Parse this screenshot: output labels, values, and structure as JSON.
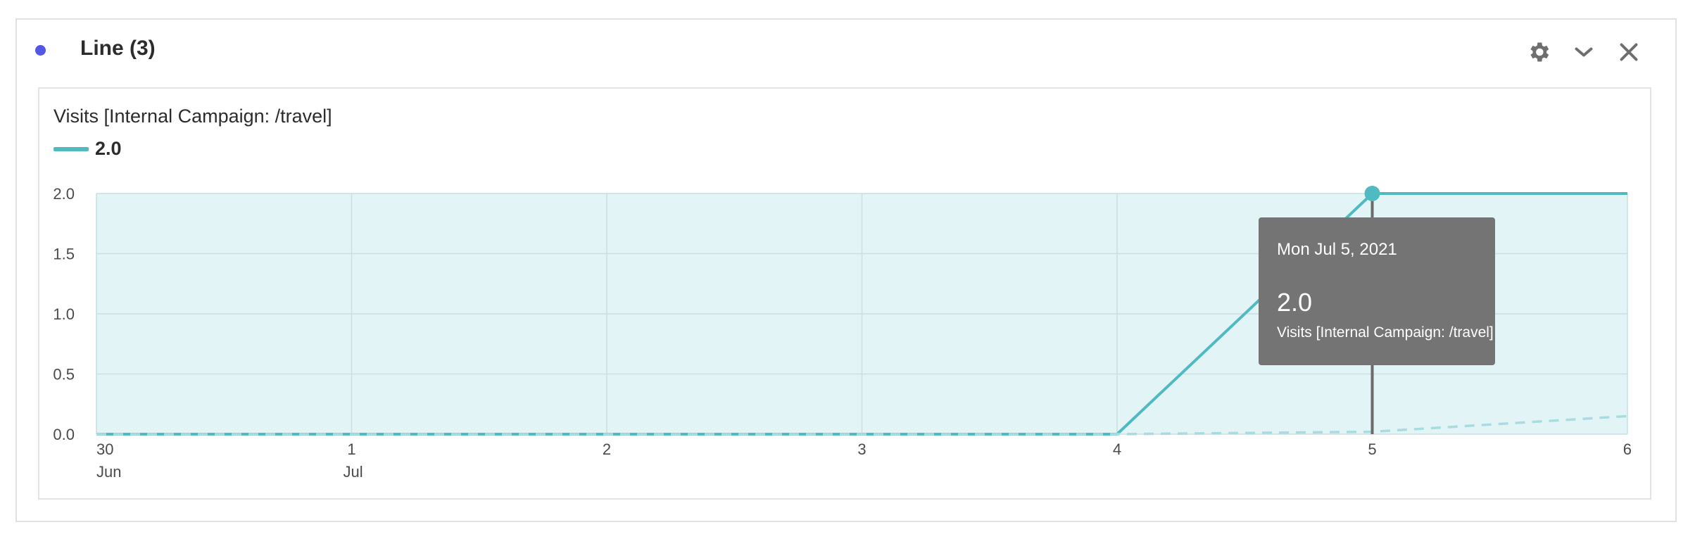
{
  "panel": {
    "title": "Line (3)",
    "dot_color": "#5258e4",
    "icons": [
      "gear-icon",
      "chevron-down-icon",
      "close-icon"
    ]
  },
  "chart_data": {
    "type": "area",
    "title": "Visits [Internal Campaign: /travel]",
    "legend": {
      "placement": "top-left",
      "label": "2.0"
    },
    "x": [
      "30 Jun",
      "1 Jul",
      "2 Jul",
      "3 Jul",
      "4 Jul",
      "5 Jul",
      "6 Jul"
    ],
    "x_tick_labels": [
      {
        "day": "30",
        "month": "Jun"
      },
      {
        "day": "1",
        "month": "Jul"
      },
      {
        "day": "2",
        "month": ""
      },
      {
        "day": "3",
        "month": ""
      },
      {
        "day": "4",
        "month": ""
      },
      {
        "day": "5",
        "month": ""
      },
      {
        "day": "6",
        "month": ""
      }
    ],
    "series": [
      {
        "name": "Visits [Internal Campaign: /travel]",
        "values": [
          0,
          0,
          0,
          0,
          0,
          2.0,
          2.0
        ],
        "color": "#4fbac2",
        "style": "solid"
      },
      {
        "values": [
          0,
          0,
          0,
          0,
          0,
          0.02,
          0.15
        ],
        "color": "#a8dce0",
        "style": "dashed"
      }
    ],
    "ylim": [
      0,
      2.0
    ],
    "y_ticks": [
      "0.0",
      "0.5",
      "1.0",
      "1.5",
      "2.0"
    ],
    "grid": true,
    "fill_color": "#e3f4f7",
    "tooltip": {
      "date": "Mon Jul 5, 2021",
      "value": "2.0",
      "metric": "Visits [Internal Campaign: /travel]"
    }
  }
}
